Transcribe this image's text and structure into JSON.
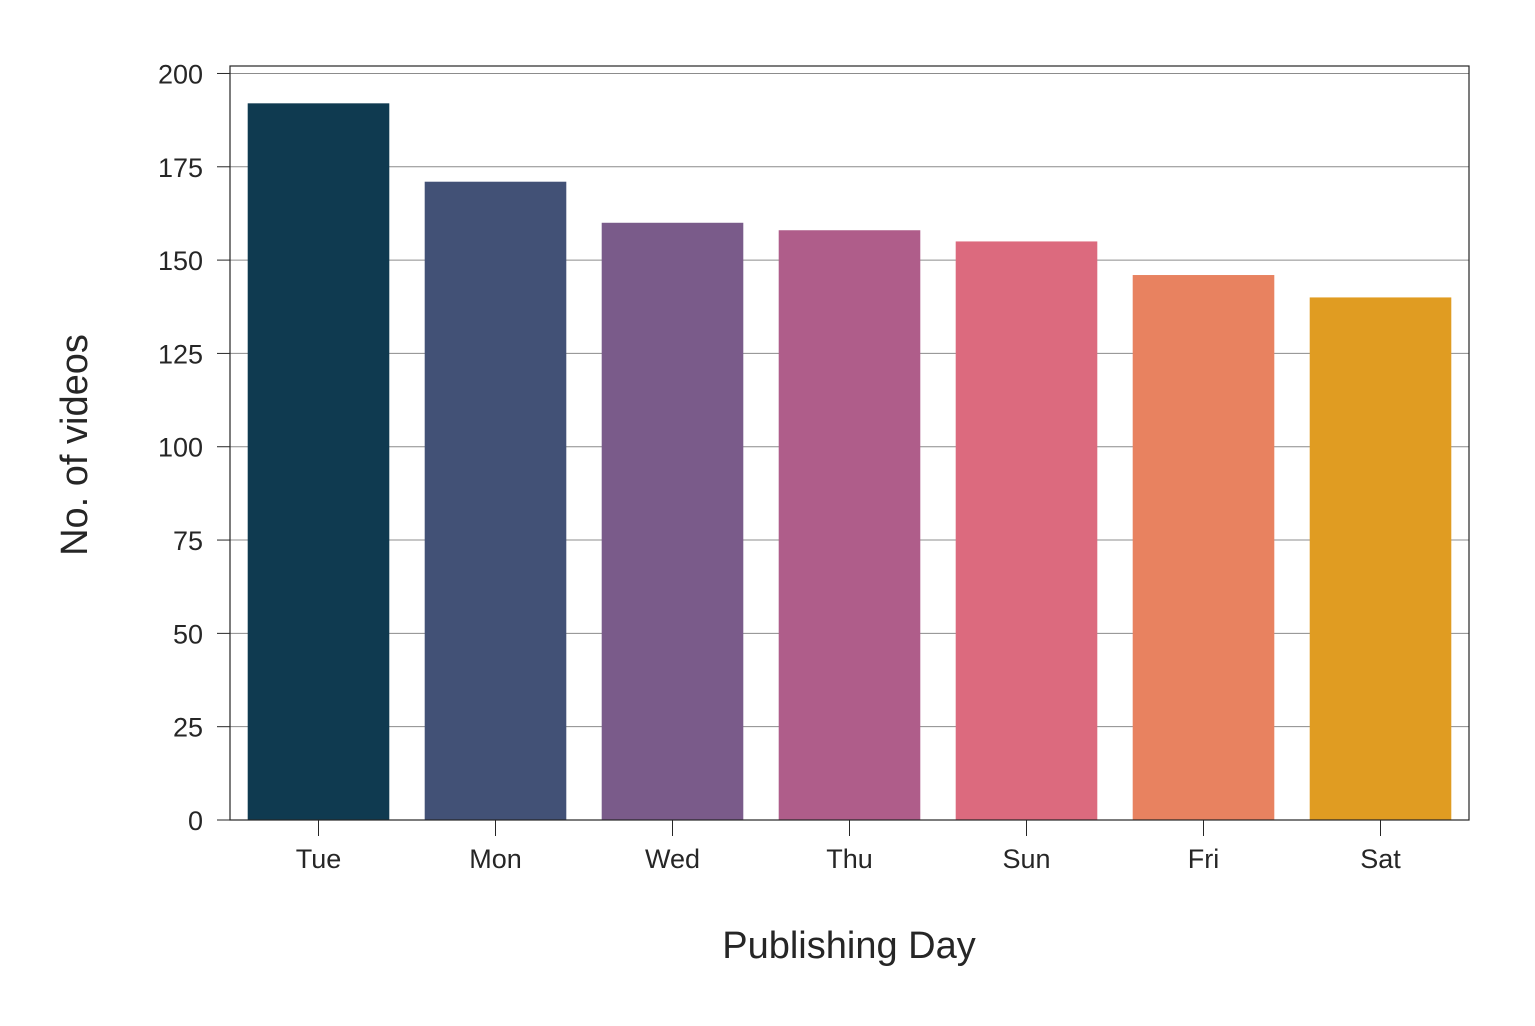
{
  "chart_data": {
    "type": "bar",
    "title": "",
    "xlabel": "Publishing Day",
    "ylabel": "No. of videos",
    "categories": [
      "Tue",
      "Mon",
      "Wed",
      "Thu",
      "Sun",
      "Fri",
      "Sat"
    ],
    "values": [
      192,
      171,
      160,
      158,
      155,
      146,
      140
    ],
    "colors": [
      "#0f3a50",
      "#425176",
      "#7a5b8a",
      "#af5d8a",
      "#dc6a7e",
      "#e88260",
      "#e09c22"
    ],
    "ylim": [
      0,
      202
    ],
    "yticks": [
      0,
      25,
      50,
      75,
      100,
      125,
      150,
      175,
      200
    ],
    "ytick_labels": [
      "0",
      "25",
      "50",
      "75",
      "100",
      "125",
      "150",
      "175",
      "200"
    ],
    "grid": true,
    "legend": "none"
  }
}
